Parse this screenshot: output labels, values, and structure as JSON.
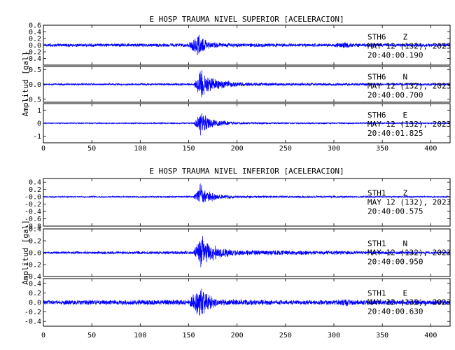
{
  "chart_data": [
    {
      "type": "line",
      "title": "E HOSP TRAUMA NIVEL SUPERIOR [ACELERACION]",
      "ylabel": "Amplitud [gal]",
      "xlabel": "",
      "xlim": [
        0,
        420
      ],
      "x_ticks": [
        "0",
        "50",
        "100",
        "150",
        "200",
        "250",
        "300",
        "350",
        "400"
      ],
      "line_color": "#0000ff",
      "series": [
        {
          "station": "STH6",
          "component": "Z",
          "date": "MAY 12 (132), 2023",
          "time": "20:40:00.190",
          "ylim": [
            -0.6,
            0.6
          ],
          "y_ticks": [
            "0.6",
            "0.4",
            "0.2",
            "0.0",
            "-0.2",
            "-0.4"
          ],
          "envelope": [
            [
              0,
              0.05
            ],
            [
              150,
              0.06
            ],
            [
              155,
              0.25
            ],
            [
              160,
              0.35
            ],
            [
              163,
              0.3
            ],
            [
              170,
              0.12
            ],
            [
              200,
              0.06
            ],
            [
              300,
              0.05
            ],
            [
              310,
              0.12
            ],
            [
              318,
              0.06
            ],
            [
              420,
              0.05
            ]
          ]
        },
        {
          "station": "STH6",
          "component": "N",
          "date": "MAY 12 (132), 2023",
          "time": "20:40:00.700",
          "ylim": [
            -0.6,
            0.6
          ],
          "y_ticks": [
            "0.5",
            "0.0",
            "-0.5"
          ],
          "envelope": [
            [
              0,
              0.03
            ],
            [
              155,
              0.04
            ],
            [
              160,
              0.4
            ],
            [
              163,
              0.55
            ],
            [
              170,
              0.3
            ],
            [
              180,
              0.18
            ],
            [
              200,
              0.08
            ],
            [
              250,
              0.05
            ],
            [
              420,
              0.04
            ]
          ]
        },
        {
          "station": "STH6",
          "component": "E",
          "date": "MAY 12 (132), 2023",
          "time": "20:40:01.825",
          "ylim": [
            -1.5,
            1.5
          ],
          "y_ticks": [
            "1",
            "0",
            "-1"
          ],
          "envelope": [
            [
              0,
              0.04
            ],
            [
              155,
              0.05
            ],
            [
              160,
              0.7
            ],
            [
              163,
              1.1
            ],
            [
              168,
              0.6
            ],
            [
              180,
              0.25
            ],
            [
              200,
              0.1
            ],
            [
              250,
              0.06
            ],
            [
              420,
              0.05
            ]
          ]
        }
      ]
    },
    {
      "type": "line",
      "title": "E HOSP TRAUMA NIVEL INFERIOR [ACELERACION]",
      "ylabel": "Amplitud [gal]",
      "xlabel": "",
      "xlim": [
        0,
        420
      ],
      "x_ticks": [
        "0",
        "50",
        "100",
        "150",
        "200",
        "250",
        "300",
        "350",
        "400"
      ],
      "line_color": "#0000ff",
      "series": [
        {
          "station": "STH1",
          "component": "Z",
          "date": "MAY 12 (132), 2023",
          "time": "20:40:00.575",
          "ylim": [
            -0.8,
            0.5
          ],
          "y_ticks": [
            "0.4",
            "0.2",
            "-0.0",
            "-0.2",
            "-0.4",
            "-0.6",
            "-0.8"
          ],
          "envelope": [
            [
              0,
              0.02
            ],
            [
              155,
              0.03
            ],
            [
              160,
              0.2
            ],
            [
              163,
              0.45
            ],
            [
              168,
              0.2
            ],
            [
              180,
              0.08
            ],
            [
              200,
              0.04
            ],
            [
              420,
              0.02
            ]
          ]
        },
        {
          "station": "STH1",
          "component": "N",
          "date": "MAY 12 (132), 2023",
          "time": "20:40:00.950",
          "ylim": [
            -0.4,
            0.4
          ],
          "y_ticks": [
            "0.4",
            "0.2",
            "0.0",
            "-0.2",
            "-0.4"
          ],
          "envelope": [
            [
              0,
              0.02
            ],
            [
              155,
              0.03
            ],
            [
              160,
              0.2
            ],
            [
              163,
              0.35
            ],
            [
              168,
              0.2
            ],
            [
              180,
              0.1
            ],
            [
              200,
              0.05
            ],
            [
              420,
              0.02
            ]
          ]
        },
        {
          "station": "STH1",
          "component": "E",
          "date": "MAY 12 (132), 2023",
          "time": "20:40:00.630",
          "ylim": [
            -0.5,
            0.5
          ],
          "y_ticks": [
            "0.4",
            "0.2",
            "0.0",
            "-0.2",
            "-0.4"
          ],
          "envelope": [
            [
              0,
              0.05
            ],
            [
              150,
              0.06
            ],
            [
              155,
              0.2
            ],
            [
              160,
              0.3
            ],
            [
              163,
              0.4
            ],
            [
              168,
              0.2
            ],
            [
              180,
              0.08
            ],
            [
              250,
              0.05
            ],
            [
              305,
              0.06
            ],
            [
              312,
              0.1
            ],
            [
              320,
              0.06
            ],
            [
              420,
              0.05
            ]
          ]
        }
      ]
    }
  ]
}
